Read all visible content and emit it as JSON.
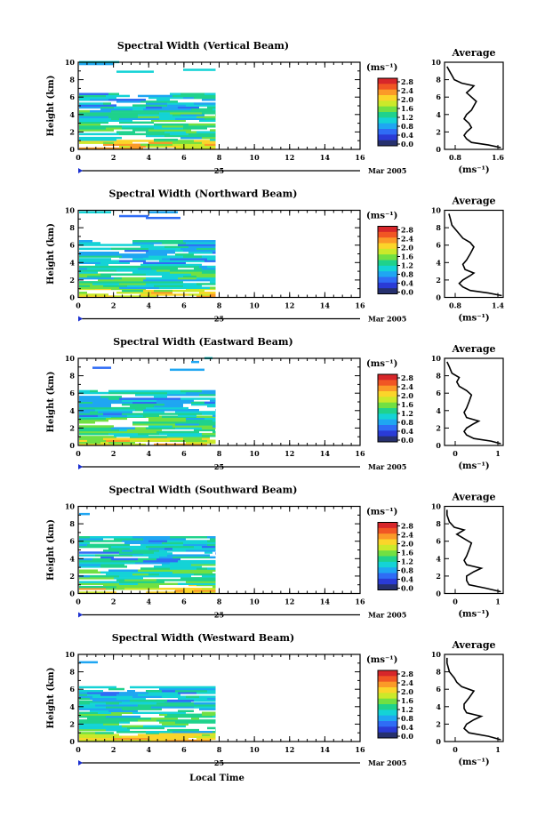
{
  "x_axis_label": "Local Time",
  "date_day": "25",
  "date_month_year": "Mar 2005",
  "colorbar": {
    "unit": "(ms⁻¹)",
    "ticks": [
      "2.8",
      "2.4",
      "2.0",
      "1.6",
      "1.2",
      "0.8",
      "0.4",
      "0.0"
    ],
    "colors": [
      "#26306e",
      "#2a3bd6",
      "#2f6cf5",
      "#1fa6f2",
      "#14d3d6",
      "#1fd28c",
      "#71e043",
      "#cbe92a",
      "#fbd52a",
      "#fb9a28",
      "#f15624",
      "#d7262a"
    ]
  },
  "chart_data": [
    {
      "type": "heatmap",
      "title": "Spectral Width (Vertical Beam)",
      "ylabel": "Height (km)",
      "xlim": [
        0,
        16
      ],
      "ylim": [
        0,
        10
      ],
      "xticks": [
        "0",
        "2",
        "4",
        "6",
        "8",
        "10",
        "12",
        "14",
        "16"
      ],
      "yticks": [
        "0",
        "2",
        "4",
        "6",
        "8",
        "10"
      ],
      "data_extent_hours": 7.8,
      "layers": [
        {
          "from": 0.0,
          "to": 1.0,
          "level": 0.7
        },
        {
          "from": 1.0,
          "to": 3.4,
          "level": 0.45
        },
        {
          "from": 3.4,
          "to": 4.5,
          "level": 0.4
        },
        {
          "from": 4.5,
          "to": 6.3,
          "level": 0.35
        },
        {
          "from": 8.6,
          "to": 10.0,
          "level": 0.3
        }
      ],
      "average": {
        "title": "Average",
        "xlabel": "(ms⁻¹)",
        "xlim": [
          0.0,
          1.2
        ],
        "xticks": [
          "0.8",
          "1.6"
        ],
        "profile": [
          {
            "h": 0.2,
            "v": 1.15
          },
          {
            "h": 0.5,
            "v": 0.9
          },
          {
            "h": 0.8,
            "v": 0.55
          },
          {
            "h": 1.2,
            "v": 0.45
          },
          {
            "h": 1.6,
            "v": 0.4
          },
          {
            "h": 2.0,
            "v": 0.45
          },
          {
            "h": 2.5,
            "v": 0.55
          },
          {
            "h": 3.0,
            "v": 0.5
          },
          {
            "h": 3.5,
            "v": 0.4
          },
          {
            "h": 4.0,
            "v": 0.45
          },
          {
            "h": 4.5,
            "v": 0.55
          },
          {
            "h": 5.0,
            "v": 0.6
          },
          {
            "h": 5.5,
            "v": 0.65
          },
          {
            "h": 6.0,
            "v": 0.55
          },
          {
            "h": 6.5,
            "v": 0.45
          },
          {
            "h": 7.0,
            "v": 0.55
          },
          {
            "h": 7.3,
            "v": 0.6
          },
          {
            "h": 7.6,
            "v": 0.35
          },
          {
            "h": 8.0,
            "v": 0.2
          },
          {
            "h": 8.5,
            "v": 0.15
          },
          {
            "h": 9.0,
            "v": 0.1
          },
          {
            "h": 9.5,
            "v": 0.05
          }
        ]
      }
    },
    {
      "type": "heatmap",
      "title": "Spectral Width (Northward Beam)",
      "ylabel": "Height (km)",
      "xlim": [
        0,
        16
      ],
      "ylim": [
        0,
        10
      ],
      "xticks": [
        "0",
        "2",
        "4",
        "6",
        "8",
        "10",
        "12",
        "14",
        "16"
      ],
      "yticks": [
        "0",
        "2",
        "4",
        "6",
        "8",
        "10"
      ],
      "data_extent_hours": 7.8,
      "layers": [
        {
          "from": 0.0,
          "to": 1.0,
          "level": 0.6
        },
        {
          "from": 1.0,
          "to": 3.2,
          "level": 0.45
        },
        {
          "from": 3.2,
          "to": 4.6,
          "level": 0.35
        },
        {
          "from": 4.6,
          "to": 6.4,
          "level": 0.35
        },
        {
          "from": 8.8,
          "to": 10.0,
          "level": 0.3
        }
      ],
      "average": {
        "title": "Average",
        "xlabel": "(ms⁻¹)",
        "xlim": [
          0.6,
          1.4
        ],
        "xticks": [
          "0.8",
          "1.4"
        ],
        "profile": [
          {
            "h": 0.2,
            "v": 1.38
          },
          {
            "h": 0.5,
            "v": 1.2
          },
          {
            "h": 0.8,
            "v": 0.95
          },
          {
            "h": 1.2,
            "v": 0.85
          },
          {
            "h": 1.6,
            "v": 0.8
          },
          {
            "h": 2.0,
            "v": 0.85
          },
          {
            "h": 2.5,
            "v": 0.95
          },
          {
            "h": 2.8,
            "v": 1.0
          },
          {
            "h": 3.2,
            "v": 0.88
          },
          {
            "h": 3.8,
            "v": 0.85
          },
          {
            "h": 4.3,
            "v": 0.9
          },
          {
            "h": 5.0,
            "v": 0.95
          },
          {
            "h": 5.8,
            "v": 1.0
          },
          {
            "h": 6.3,
            "v": 0.95
          },
          {
            "h": 6.8,
            "v": 0.85
          },
          {
            "h": 7.3,
            "v": 0.8
          },
          {
            "h": 7.8,
            "v": 0.75
          },
          {
            "h": 8.3,
            "v": 0.7
          },
          {
            "h": 9.0,
            "v": 0.68
          },
          {
            "h": 9.6,
            "v": 0.66
          }
        ]
      }
    },
    {
      "type": "heatmap",
      "title": "Spectral Width (Eastward Beam)",
      "ylabel": "Height (km)",
      "xlim": [
        0,
        16
      ],
      "ylim": [
        0,
        10
      ],
      "xticks": [
        "0",
        "2",
        "4",
        "6",
        "8",
        "10",
        "12",
        "14",
        "16"
      ],
      "yticks": [
        "0",
        "2",
        "4",
        "6",
        "8",
        "10"
      ],
      "data_extent_hours": 7.8,
      "layers": [
        {
          "from": 0.0,
          "to": 1.0,
          "level": 0.6
        },
        {
          "from": 1.0,
          "to": 3.3,
          "level": 0.45
        },
        {
          "from": 3.3,
          "to": 4.6,
          "level": 0.35
        },
        {
          "from": 4.6,
          "to": 6.2,
          "level": 0.35
        },
        {
          "from": 8.6,
          "to": 10.0,
          "level": 0.3
        }
      ],
      "average": {
        "title": "Average",
        "xlabel": "(ms⁻¹)",
        "xlim": [
          0,
          1.2
        ],
        "xticks": [
          "0",
          "1"
        ],
        "profile": [
          {
            "h": 0.2,
            "v": 1.15
          },
          {
            "h": 0.5,
            "v": 0.95
          },
          {
            "h": 0.8,
            "v": 0.6
          },
          {
            "h": 1.2,
            "v": 0.45
          },
          {
            "h": 1.6,
            "v": 0.4
          },
          {
            "h": 2.0,
            "v": 0.45
          },
          {
            "h": 2.5,
            "v": 0.6
          },
          {
            "h": 2.8,
            "v": 0.7
          },
          {
            "h": 3.2,
            "v": 0.45
          },
          {
            "h": 3.8,
            "v": 0.4
          },
          {
            "h": 4.3,
            "v": 0.45
          },
          {
            "h": 5.0,
            "v": 0.5
          },
          {
            "h": 5.8,
            "v": 0.55
          },
          {
            "h": 6.3,
            "v": 0.45
          },
          {
            "h": 6.8,
            "v": 0.3
          },
          {
            "h": 7.3,
            "v": 0.25
          },
          {
            "h": 7.8,
            "v": 0.3
          },
          {
            "h": 8.3,
            "v": 0.15
          },
          {
            "h": 9.0,
            "v": 0.1
          },
          {
            "h": 9.6,
            "v": 0.05
          }
        ]
      }
    },
    {
      "type": "heatmap",
      "title": "Spectral Width (Southward Beam)",
      "ylabel": "Height (km)",
      "xlim": [
        0,
        16
      ],
      "ylim": [
        0,
        10
      ],
      "xticks": [
        "0",
        "2",
        "4",
        "6",
        "8",
        "10",
        "12",
        "14",
        "16"
      ],
      "yticks": [
        "0",
        "2",
        "4",
        "6",
        "8",
        "10"
      ],
      "data_extent_hours": 7.8,
      "layers": [
        {
          "from": 0.0,
          "to": 1.0,
          "level": 0.6
        },
        {
          "from": 1.0,
          "to": 3.4,
          "level": 0.45
        },
        {
          "from": 3.4,
          "to": 4.6,
          "level": 0.35
        },
        {
          "from": 4.6,
          "to": 6.5,
          "level": 0.35
        },
        {
          "from": 8.8,
          "to": 10.0,
          "level": 0.3
        }
      ],
      "average": {
        "title": "Average",
        "xlabel": "(ms⁻¹)",
        "xlim": [
          0,
          1.2
        ],
        "xticks": [
          "0",
          "1"
        ],
        "profile": [
          {
            "h": 0.2,
            "v": 1.15
          },
          {
            "h": 0.6,
            "v": 0.85
          },
          {
            "h": 1.0,
            "v": 0.5
          },
          {
            "h": 1.5,
            "v": 0.45
          },
          {
            "h": 2.0,
            "v": 0.45
          },
          {
            "h": 2.5,
            "v": 0.6
          },
          {
            "h": 2.9,
            "v": 0.75
          },
          {
            "h": 3.3,
            "v": 0.45
          },
          {
            "h": 3.8,
            "v": 0.4
          },
          {
            "h": 4.3,
            "v": 0.45
          },
          {
            "h": 5.0,
            "v": 0.5
          },
          {
            "h": 5.8,
            "v": 0.55
          },
          {
            "h": 6.3,
            "v": 0.4
          },
          {
            "h": 6.8,
            "v": 0.25
          },
          {
            "h": 7.3,
            "v": 0.4
          },
          {
            "h": 7.6,
            "v": 0.2
          },
          {
            "h": 8.2,
            "v": 0.1
          },
          {
            "h": 9.0,
            "v": 0.05
          },
          {
            "h": 9.6,
            "v": 0.05
          }
        ]
      }
    },
    {
      "type": "heatmap",
      "title": "Spectral Width (Westward Beam)",
      "ylabel": "Height (km)",
      "xlim": [
        0,
        16
      ],
      "ylim": [
        0,
        10
      ],
      "xticks": [
        "0",
        "2",
        "4",
        "6",
        "8",
        "10",
        "12",
        "14",
        "16"
      ],
      "yticks": [
        "0",
        "2",
        "4",
        "6",
        "8",
        "10"
      ],
      "data_extent_hours": 7.8,
      "layers": [
        {
          "from": 0.0,
          "to": 1.0,
          "level": 0.6
        },
        {
          "from": 1.0,
          "to": 3.4,
          "level": 0.45
        },
        {
          "from": 3.4,
          "to": 4.6,
          "level": 0.35
        },
        {
          "from": 4.6,
          "to": 6.3,
          "level": 0.35
        },
        {
          "from": 9.0,
          "to": 10.0,
          "level": 0.3
        }
      ],
      "average": {
        "title": "Average",
        "xlabel": "(ms⁻¹)",
        "xlim": [
          0,
          1.2
        ],
        "xticks": [
          "0",
          "1"
        ],
        "profile": [
          {
            "h": 0.2,
            "v": 1.15
          },
          {
            "h": 0.6,
            "v": 0.9
          },
          {
            "h": 1.0,
            "v": 0.5
          },
          {
            "h": 1.5,
            "v": 0.4
          },
          {
            "h": 2.0,
            "v": 0.45
          },
          {
            "h": 2.5,
            "v": 0.6
          },
          {
            "h": 2.9,
            "v": 0.75
          },
          {
            "h": 3.3,
            "v": 0.45
          },
          {
            "h": 3.8,
            "v": 0.4
          },
          {
            "h": 4.3,
            "v": 0.4
          },
          {
            "h": 5.0,
            "v": 0.5
          },
          {
            "h": 5.8,
            "v": 0.6
          },
          {
            "h": 6.3,
            "v": 0.35
          },
          {
            "h": 6.8,
            "v": 0.25
          },
          {
            "h": 7.3,
            "v": 0.2
          },
          {
            "h": 8.0,
            "v": 0.1
          },
          {
            "h": 9.0,
            "v": 0.05
          },
          {
            "h": 9.6,
            "v": 0.05
          }
        ]
      }
    }
  ]
}
